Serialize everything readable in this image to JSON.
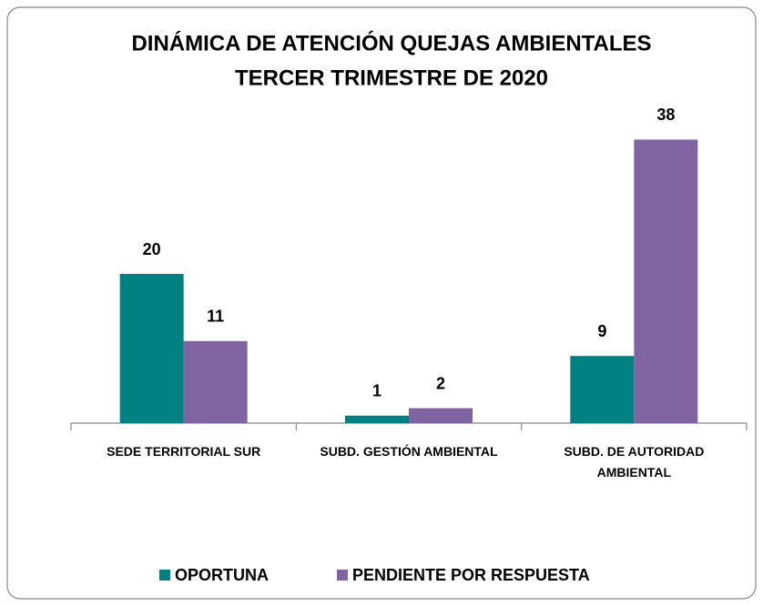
{
  "chart_data": {
    "type": "bar",
    "title": "DINÁMICA DE ATENCIÓN QUEJAS AMBIENTALES",
    "subtitle": "TERCER TRIMESTRE DE 2020",
    "categories": [
      "SEDE TERRITORIAL SUR",
      "SUBD. GESTIÓN AMBIENTAL",
      "SUBD. DE AUTORIDAD AMBIENTAL"
    ],
    "series": [
      {
        "name": "OPORTUNA",
        "color": "#008080",
        "values": [
          20,
          1,
          9
        ]
      },
      {
        "name": "PENDIENTE POR RESPUESTA",
        "color": "#8064a2",
        "values": [
          11,
          2,
          38
        ]
      }
    ],
    "legend": "bottom"
  }
}
